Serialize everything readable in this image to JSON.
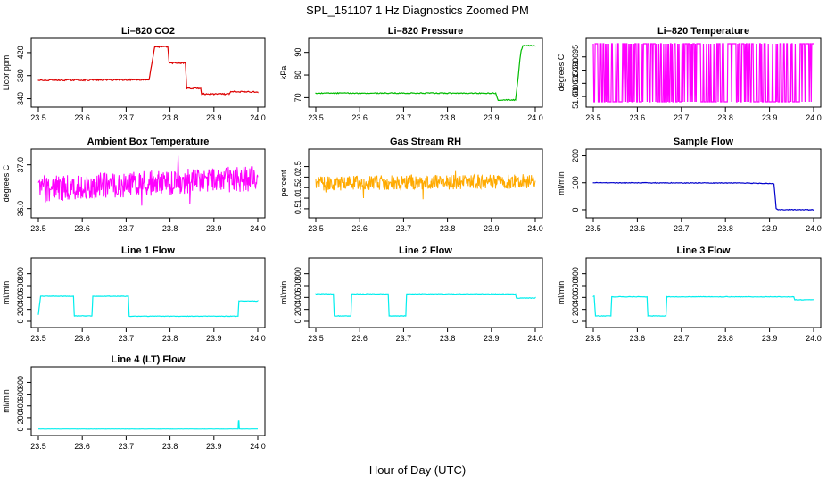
{
  "figure": {
    "title": "SPL_151107  1 Hz Diagnostics Zoomed PM",
    "xlabel": "Hour of Day (UTC)"
  },
  "chart_data": [
    {
      "type": "line",
      "title": "Li–820 CO2",
      "ylabel": "Licor ppm",
      "color": "#dd0000",
      "xlim": [
        23.5,
        24.0
      ],
      "ylim": [
        330,
        440
      ],
      "yticks": [
        340,
        380,
        420
      ],
      "yticklabels": [
        "340",
        "380",
        "420"
      ],
      "xticks": [
        23.5,
        23.6,
        23.7,
        23.8,
        23.9,
        24.0
      ],
      "xticklabels": [
        "23.5",
        "23.6",
        "23.7",
        "23.8",
        "23.9",
        "24.0"
      ],
      "noise": 1.2,
      "x": [
        23.5,
        23.75,
        23.752,
        23.765,
        23.768,
        23.795,
        23.798,
        23.835,
        23.838,
        23.87,
        23.872,
        23.935,
        23.938,
        24.0
      ],
      "y": [
        372,
        373,
        372,
        430,
        430,
        430,
        402,
        402,
        358,
        358,
        348,
        348,
        352,
        352
      ]
    },
    {
      "type": "line",
      "title": "Li–820 Pressure",
      "ylabel": "kPa",
      "color": "#00bb00",
      "xlim": [
        23.5,
        24.0
      ],
      "ylim": [
        67,
        95
      ],
      "yticks": [
        70,
        80,
        90
      ],
      "yticklabels": [
        "70",
        "80",
        "90"
      ],
      "xticks": [
        23.5,
        23.6,
        23.7,
        23.8,
        23.9,
        24.0
      ],
      "xticklabels": [
        "23.5",
        "23.6",
        "23.7",
        "23.8",
        "23.9",
        "24.0"
      ],
      "noise": 0.2,
      "x": [
        23.5,
        23.91,
        23.915,
        23.955,
        23.96,
        23.965,
        23.968,
        23.972,
        24.0
      ],
      "y": [
        72,
        72,
        69,
        69,
        77,
        87,
        91,
        93,
        93
      ]
    },
    {
      "type": "spikes",
      "title": "Li–820 Temperature",
      "ylabel": "degrees C",
      "color": "#ff00ff",
      "xlim": [
        23.5,
        24.0
      ],
      "ylim": [
        51.677,
        51.701
      ],
      "low": 51.678,
      "high": 51.7,
      "yticks": [
        51.68,
        51.685,
        51.69,
        51.695
      ],
      "yticklabels": [
        "51.680",
        "51.685",
        "51.690",
        "51.695"
      ],
      "xticks": [
        23.5,
        23.6,
        23.7,
        23.8,
        23.9,
        24.0
      ],
      "xticklabels": [
        "23.5",
        "23.6",
        "23.7",
        "23.8",
        "23.9",
        "24.0"
      ]
    },
    {
      "type": "noise",
      "title": "Ambient Box Temperature",
      "ylabel": "degrees C",
      "color": "#ff00ff",
      "xlim": [
        23.5,
        24.0
      ],
      "ylim": [
        35.85,
        37.3
      ],
      "yticks": [
        36.0,
        37.0
      ],
      "yticklabels": [
        "36.0",
        "37.0"
      ],
      "xticks": [
        23.5,
        23.6,
        23.7,
        23.8,
        23.9,
        24.0
      ],
      "xticklabels": [
        "23.5",
        "23.6",
        "23.7",
        "23.8",
        "23.9",
        "24.0"
      ],
      "x": [
        23.5,
        24.0
      ],
      "center": [
        36.45,
        36.7
      ],
      "spread": 0.3
    },
    {
      "type": "noise",
      "title": "Gas Stream RH",
      "ylabel": "percent",
      "color": "#ffaa00",
      "xlim": [
        23.5,
        24.0
      ],
      "ylim": [
        0.2,
        3.2
      ],
      "yticks": [
        0.5,
        1.0,
        1.5,
        2.0,
        2.5
      ],
      "yticklabels": [
        "0.5",
        "1.0",
        "1.5",
        "2.0",
        "2.5"
      ],
      "xticks": [
        23.5,
        23.6,
        23.7,
        23.8,
        23.9,
        24.0
      ],
      "xticklabels": [
        "23.5",
        "23.6",
        "23.7",
        "23.8",
        "23.9",
        "24.0"
      ],
      "x": [
        23.5,
        24.0
      ],
      "center": [
        1.7,
        1.8
      ],
      "spread": 0.35
    },
    {
      "type": "line",
      "title": "Sample Flow",
      "ylabel": "ml/min",
      "color": "#0000cc",
      "xlim": [
        23.5,
        24.0
      ],
      "ylim": [
        -20,
        215
      ],
      "yticks": [
        0,
        100,
        200
      ],
      "yticklabels": [
        "0",
        "100",
        "200"
      ],
      "xticks": [
        23.5,
        23.6,
        23.7,
        23.8,
        23.9,
        24.0
      ],
      "xticklabels": [
        "23.5",
        "23.6",
        "23.7",
        "23.8",
        "23.9",
        "24.0"
      ],
      "noise": 1.2,
      "x": [
        23.5,
        23.85,
        23.91,
        23.915,
        23.92,
        24.0
      ],
      "y": [
        100,
        99,
        97,
        5,
        0,
        0
      ]
    },
    {
      "type": "line",
      "title": "Line 1 Flow",
      "ylabel": "ml/min",
      "color": "#00eeee",
      "xlim": [
        23.5,
        24.0
      ],
      "ylim": [
        -60,
        1020
      ],
      "yticks": [
        0,
        200,
        400,
        600,
        800
      ],
      "yticklabels": [
        "0",
        "200",
        "400",
        "600",
        "800"
      ],
      "xticks": [
        23.5,
        23.6,
        23.7,
        23.8,
        23.9,
        24.0
      ],
      "xticklabels": [
        "23.5",
        "23.6",
        "23.7",
        "23.8",
        "23.9",
        "24.0"
      ],
      "noise": 4,
      "x": [
        23.5,
        23.505,
        23.58,
        23.582,
        23.622,
        23.624,
        23.705,
        23.707,
        23.955,
        23.957,
        24.0
      ],
      "y": [
        110,
        420,
        420,
        90,
        90,
        420,
        420,
        85,
        85,
        340,
        340
      ]
    },
    {
      "type": "line",
      "title": "Line 2 Flow",
      "ylabel": "ml/min",
      "color": "#00eeee",
      "xlim": [
        23.5,
        24.0
      ],
      "ylim": [
        -60,
        1020
      ],
      "yticks": [
        0,
        200,
        400,
        600,
        800
      ],
      "yticklabels": [
        "0",
        "200",
        "400",
        "600",
        "800"
      ],
      "xticks": [
        23.5,
        23.6,
        23.7,
        23.8,
        23.9,
        24.0
      ],
      "xticklabels": [
        "23.5",
        "23.6",
        "23.7",
        "23.8",
        "23.9",
        "24.0"
      ],
      "noise": 5,
      "x": [
        23.5,
        23.54,
        23.542,
        23.58,
        23.582,
        23.665,
        23.667,
        23.705,
        23.707,
        23.955,
        23.957,
        24.0
      ],
      "y": [
        460,
        460,
        90,
        90,
        460,
        460,
        90,
        90,
        460,
        460,
        390,
        390
      ]
    },
    {
      "type": "line",
      "title": "Line 3 Flow",
      "ylabel": "ml/min",
      "color": "#00eeee",
      "xlim": [
        23.5,
        24.0
      ],
      "ylim": [
        -60,
        1020
      ],
      "yticks": [
        0,
        200,
        400,
        600,
        800
      ],
      "yticklabels": [
        "0",
        "200",
        "400",
        "600",
        "800"
      ],
      "xticks": [
        23.5,
        23.6,
        23.7,
        23.8,
        23.9,
        24.0
      ],
      "xticklabels": [
        "23.5",
        "23.6",
        "23.7",
        "23.8",
        "23.9",
        "24.0"
      ],
      "noise": 4,
      "x": [
        23.5,
        23.502,
        23.505,
        23.54,
        23.542,
        23.622,
        23.624,
        23.665,
        23.667,
        23.955,
        23.957,
        24.0
      ],
      "y": [
        420,
        420,
        90,
        90,
        410,
        410,
        90,
        90,
        410,
        410,
        360,
        360
      ]
    },
    {
      "type": "line",
      "title": "Line 4 (LT) Flow",
      "ylabel": "ml/min",
      "color": "#00eeee",
      "xlim": [
        23.5,
        24.0
      ],
      "ylim": [
        -60,
        1020
      ],
      "yticks": [
        0,
        200,
        400,
        600,
        800
      ],
      "yticklabels": [
        "0",
        "200",
        "400",
        "600",
        "800"
      ],
      "xticks": [
        23.5,
        23.6,
        23.7,
        23.8,
        23.9,
        24.0
      ],
      "xticklabels": [
        "23.5",
        "23.6",
        "23.7",
        "23.8",
        "23.9",
        "24.0"
      ],
      "noise": 1,
      "x": [
        23.5,
        23.955,
        23.956,
        23.957,
        23.958,
        24.0
      ],
      "y": [
        5,
        5,
        140,
        140,
        5,
        5
      ]
    }
  ]
}
